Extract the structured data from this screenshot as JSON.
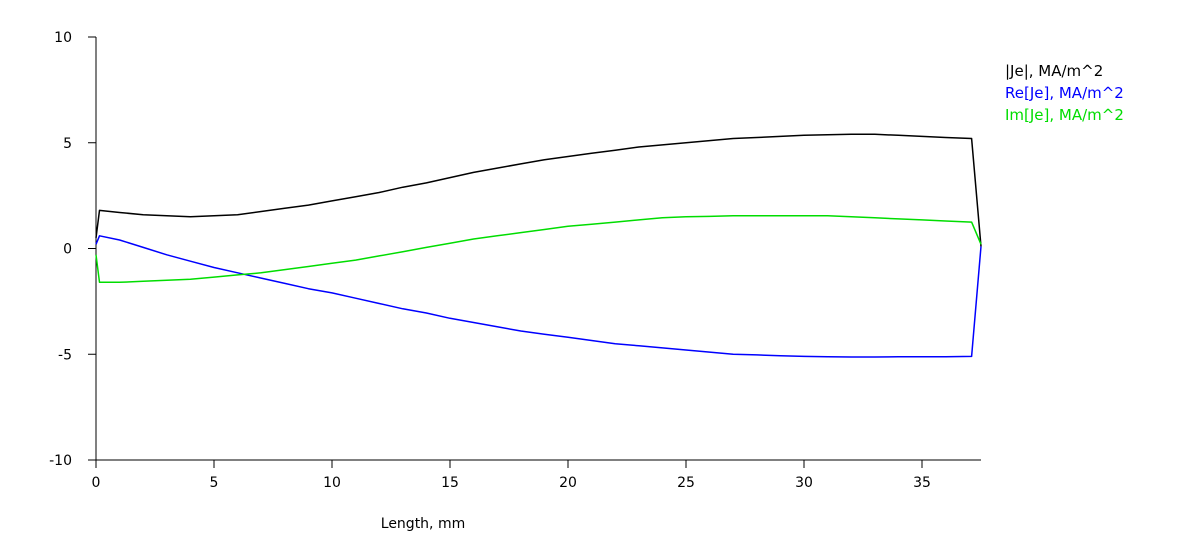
{
  "chart_data": {
    "type": "line",
    "title": "",
    "xlabel": "Length, mm",
    "ylabel": "",
    "xlim": [
      0,
      37.5
    ],
    "ylim": [
      -10,
      10
    ],
    "xticks": [
      0,
      5,
      10,
      15,
      20,
      25,
      30,
      35
    ],
    "yticks": [
      -10,
      -5,
      0,
      5,
      10
    ],
    "grid": false,
    "legend_position": "top-right",
    "series": [
      {
        "name": "|Je|, MA/m^2",
        "color": "#000000",
        "x": [
          0,
          0.15,
          1,
          2,
          3,
          4,
          5,
          6,
          7,
          8,
          9,
          10,
          11,
          12,
          13,
          14,
          15,
          16,
          17,
          18,
          19,
          20,
          21,
          22,
          23,
          24,
          25,
          26,
          27,
          28,
          29,
          30,
          31,
          32,
          33,
          34,
          35,
          36,
          37.1,
          37.5
        ],
        "y": [
          0.5,
          1.8,
          1.7,
          1.6,
          1.55,
          1.5,
          1.55,
          1.6,
          1.75,
          1.9,
          2.05,
          2.25,
          2.45,
          2.65,
          2.9,
          3.1,
          3.35,
          3.6,
          3.8,
          4.0,
          4.2,
          4.35,
          4.5,
          4.65,
          4.8,
          4.9,
          5.0,
          5.1,
          5.2,
          5.25,
          5.3,
          5.35,
          5.38,
          5.4,
          5.4,
          5.35,
          5.3,
          5.25,
          5.2,
          0.1
        ]
      },
      {
        "name": "Re[Je], MA/m^2",
        "color": "#0000ff",
        "x": [
          0,
          0.15,
          1,
          2,
          3,
          4,
          5,
          6,
          7,
          8,
          9,
          10,
          11,
          12,
          13,
          14,
          15,
          16,
          17,
          18,
          19,
          20,
          21,
          22,
          23,
          24,
          25,
          26,
          27,
          28,
          29,
          30,
          31,
          32,
          33,
          34,
          35,
          36,
          37.1,
          37.5
        ],
        "y": [
          0.2,
          0.6,
          0.4,
          0.05,
          -0.3,
          -0.6,
          -0.9,
          -1.15,
          -1.4,
          -1.65,
          -1.9,
          -2.1,
          -2.35,
          -2.6,
          -2.85,
          -3.05,
          -3.3,
          -3.5,
          -3.7,
          -3.9,
          -4.05,
          -4.2,
          -4.35,
          -4.5,
          -4.6,
          -4.7,
          -4.8,
          -4.9,
          -5.0,
          -5.03,
          -5.07,
          -5.1,
          -5.12,
          -5.13,
          -5.13,
          -5.12,
          -5.12,
          -5.12,
          -5.1,
          0.1
        ]
      },
      {
        "name": "Im[Je], MA/m^2",
        "color": "#00dd00",
        "x": [
          0,
          0.15,
          1,
          2,
          3,
          4,
          5,
          6,
          7,
          8,
          9,
          10,
          11,
          12,
          13,
          14,
          15,
          16,
          17,
          18,
          19,
          20,
          21,
          22,
          23,
          24,
          25,
          26,
          27,
          28,
          29,
          30,
          31,
          32,
          33,
          34,
          35,
          36,
          37.1,
          37.5
        ],
        "y": [
          -0.3,
          -1.6,
          -1.6,
          -1.55,
          -1.5,
          -1.45,
          -1.35,
          -1.25,
          -1.15,
          -1.0,
          -0.85,
          -0.7,
          -0.55,
          -0.35,
          -0.15,
          0.05,
          0.25,
          0.45,
          0.6,
          0.75,
          0.9,
          1.05,
          1.15,
          1.25,
          1.35,
          1.45,
          1.5,
          1.52,
          1.55,
          1.55,
          1.55,
          1.55,
          1.55,
          1.5,
          1.45,
          1.4,
          1.35,
          1.3,
          1.25,
          0.2
        ]
      }
    ]
  }
}
